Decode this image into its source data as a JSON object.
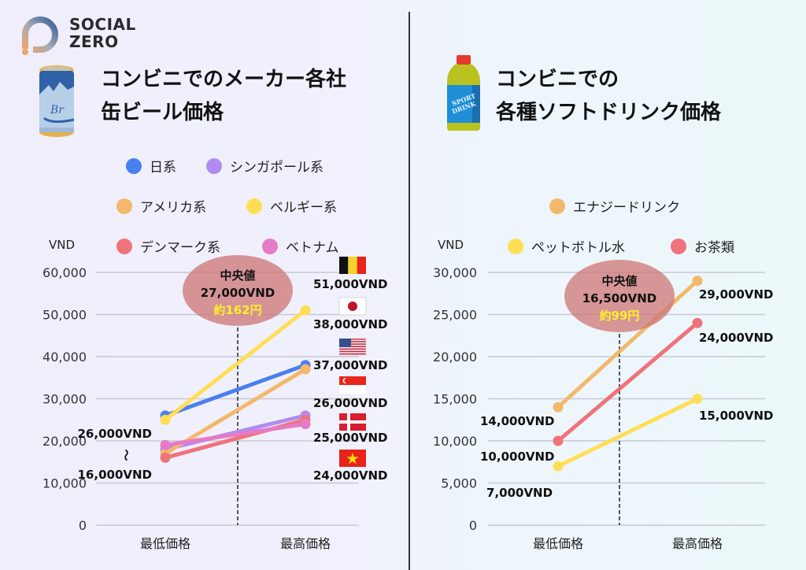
{
  "brand": {
    "line1": "SOCIAL",
    "line2": "ZERO"
  },
  "left_panel": {
    "icon": "beer-can-icon",
    "title_line1": "コンビニでのメーカー各社",
    "title_line2": "缶ビール価格",
    "unit": "VND",
    "median": {
      "label": "中央値",
      "value": "27,000VND",
      "yen": "約162円"
    },
    "min_range_label_top": "26,000VND",
    "min_range_tilde": "~",
    "min_range_label_bottom": "16,000VND",
    "max_labels": [
      {
        "flag": "belgium-flag-icon",
        "text": "51,000VND"
      },
      {
        "flag": "japan-flag-icon",
        "text": "38,000VND"
      },
      {
        "flag": "usa-flag-icon",
        "text": "37,000VND"
      },
      {
        "flag": "singapore-flag-icon",
        "text": "26,000VND"
      },
      {
        "flag": "denmark-flag-icon",
        "text": "25,000VND"
      },
      {
        "flag": "vietnam-flag-icon",
        "text": "24,000VND"
      }
    ]
  },
  "right_panel": {
    "icon": "sports-drink-bottle-icon",
    "title_line1": "コンビニでの",
    "title_line2": "各種ソフトドリンク価格",
    "unit": "VND",
    "median": {
      "label": "中央値",
      "value": "16,500VND",
      "yen": "約99円"
    },
    "min_labels": [
      "14,000VND",
      "10,000VND",
      "7,000VND"
    ],
    "max_labels": [
      "29,000VND",
      "24,000VND",
      "15,000VND"
    ]
  },
  "chart_data": [
    {
      "type": "line",
      "title": "コンビニでのメーカー各社缶ビール価格",
      "xlabel": "",
      "ylabel": "VND",
      "categories": [
        "最低価格",
        "最高価格"
      ],
      "ylim": [
        0,
        60000
      ],
      "yticks": [
        0,
        10000,
        20000,
        30000,
        40000,
        50000,
        60000
      ],
      "ytick_labels": [
        "0",
        "10,000",
        "20,000",
        "30,000",
        "40,000",
        "50,000",
        "60,000"
      ],
      "grid": true,
      "legend_position": "top",
      "median_marker": {
        "value": 27000,
        "label": "中央値"
      },
      "series": [
        {
          "name": "日系",
          "color": "#4a7ff0",
          "values": [
            26000,
            38000
          ]
        },
        {
          "name": "シンガポール系",
          "color": "#b28bf2",
          "values": [
            18000,
            26000
          ]
        },
        {
          "name": "アメリカ系",
          "color": "#f3b86c",
          "values": [
            17000,
            37000
          ]
        },
        {
          "name": "ベルギー系",
          "color": "#ffde55",
          "values": [
            25000,
            51000
          ]
        },
        {
          "name": "デンマーク系",
          "color": "#ef737b",
          "values": [
            16000,
            25000
          ]
        },
        {
          "name": "ベトナム",
          "color": "#e67bc6",
          "values": [
            19000,
            24000
          ]
        }
      ]
    },
    {
      "type": "line",
      "title": "コンビニでの各種ソフトドリンク価格",
      "xlabel": "",
      "ylabel": "VND",
      "categories": [
        "最低価格",
        "最高価格"
      ],
      "ylim": [
        0,
        30000
      ],
      "yticks": [
        0,
        5000,
        10000,
        15000,
        20000,
        25000,
        30000
      ],
      "ytick_labels": [
        "0",
        "5,000",
        "10,000",
        "15,000",
        "20,000",
        "25,000",
        "30,000"
      ],
      "grid": true,
      "legend_position": "top",
      "median_marker": {
        "value": 16500,
        "label": "中央値"
      },
      "series": [
        {
          "name": "エナジードリンク",
          "color": "#f3b86c",
          "values": [
            14000,
            29000
          ]
        },
        {
          "name": "ペットボトル水",
          "color": "#ffde55",
          "values": [
            7000,
            15000
          ]
        },
        {
          "name": "お茶類",
          "color": "#ef737b",
          "values": [
            10000,
            24000
          ]
        }
      ]
    }
  ]
}
